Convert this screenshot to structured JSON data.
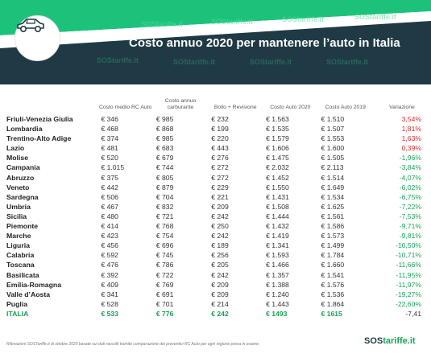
{
  "header": {
    "title": "Costo annuo 2020 per mantenere l’auto in Italia",
    "watermark_text": "SOStariffe.it",
    "colors": {
      "band": "#1f3a44",
      "accent": "#1dc27a"
    }
  },
  "table": {
    "columns": [
      "",
      "Costo medio RC Auto",
      "Costo annuo carburante",
      "Bollo + Revisione",
      "Costo Auto 2020",
      "Costo Auto 2019",
      "Variazione"
    ],
    "rows": [
      {
        "region": "Friuli-Venezia Giulia",
        "rc": "€ 346",
        "fuel": "€ 985",
        "bollo": "€ 232",
        "c2020": "€ 1.563",
        "c2019": "€ 1.510",
        "var": "3,54%",
        "trend": "pos"
      },
      {
        "region": "Lombardia",
        "rc": "€ 468",
        "fuel": "€ 868",
        "bollo": "€ 199",
        "c2020": "€ 1.535",
        "c2019": "€ 1.507",
        "var": "1,81%",
        "trend": "pos"
      },
      {
        "region": "Trentino-Alto Adige",
        "rc": "€ 374",
        "fuel": "€ 985",
        "bollo": "€ 220",
        "c2020": "€ 1.579",
        "c2019": "€ 1.553",
        "var": "1,63%",
        "trend": "pos"
      },
      {
        "region": "Lazio",
        "rc": "€ 481",
        "fuel": "€ 683",
        "bollo": "€ 443",
        "c2020": "€ 1.606",
        "c2019": "€ 1.600",
        "var": "0,39%",
        "trend": "pos"
      },
      {
        "region": "Molise",
        "rc": "€ 520",
        "fuel": "€ 679",
        "bollo": "€ 276",
        "c2020": "€ 1.475",
        "c2019": "€ 1.505",
        "var": "-1,96%",
        "trend": "neg"
      },
      {
        "region": "Campania",
        "rc": "€ 1.015",
        "fuel": "€ 744",
        "bollo": "€ 272",
        "c2020": "€ 2.032",
        "c2019": "€ 2.113",
        "var": "-3,84%",
        "trend": "neg"
      },
      {
        "region": "Abruzzo",
        "rc": "€ 375",
        "fuel": "€ 805",
        "bollo": "€ 272",
        "c2020": "€ 1.452",
        "c2019": "€ 1.514",
        "var": "-4,07%",
        "trend": "neg"
      },
      {
        "region": "Veneto",
        "rc": "€ 442",
        "fuel": "€ 879",
        "bollo": "€ 229",
        "c2020": "€ 1.550",
        "c2019": "€ 1.649",
        "var": "-6,02%",
        "trend": "neg"
      },
      {
        "region": "Sardegna",
        "rc": "€ 506",
        "fuel": "€ 704",
        "bollo": "€ 221",
        "c2020": "€ 1.431",
        "c2019": "€ 1.534",
        "var": "-6,75%",
        "trend": "neg"
      },
      {
        "region": "Umbria",
        "rc": "€ 467",
        "fuel": "€ 832",
        "bollo": "€ 209",
        "c2020": "€ 1.508",
        "c2019": "€ 1.625",
        "var": "-7,22%",
        "trend": "neg"
      },
      {
        "region": "Sicilia",
        "rc": "€ 480",
        "fuel": "€ 721",
        "bollo": "€ 242",
        "c2020": "€ 1.444",
        "c2019": "€ 1.561",
        "var": "-7,53%",
        "trend": "neg"
      },
      {
        "region": "Piemonte",
        "rc": "€ 414",
        "fuel": "€ 768",
        "bollo": "€ 250",
        "c2020": "€ 1.432",
        "c2019": "€ 1.586",
        "var": "-9,71%",
        "trend": "neg"
      },
      {
        "region": "Marche",
        "rc": "€ 423",
        "fuel": "€ 754",
        "bollo": "€ 242",
        "c2020": "€ 1.419",
        "c2019": "€ 1.573",
        "var": "-9,81%",
        "trend": "neg"
      },
      {
        "region": "Liguria",
        "rc": "€ 456",
        "fuel": "€ 696",
        "bollo": "€ 189",
        "c2020": "€ 1.341",
        "c2019": "€ 1.499",
        "var": "-10,50%",
        "trend": "neg"
      },
      {
        "region": "Calabria",
        "rc": "€ 592",
        "fuel": "€ 745",
        "bollo": "€ 256",
        "c2020": "€ 1.593",
        "c2019": "€ 1.784",
        "var": "-10,71%",
        "trend": "neg"
      },
      {
        "region": "Toscana",
        "rc": "€ 476",
        "fuel": "€ 786",
        "bollo": "€ 205",
        "c2020": "€ 1.466",
        "c2019": "€ 1.660",
        "var": "-11,66%",
        "trend": "neg"
      },
      {
        "region": "Basilicata",
        "rc": "€ 392",
        "fuel": "€ 722",
        "bollo": "€ 242",
        "c2020": "€ 1.357",
        "c2019": "€ 1.541",
        "var": "-11,95%",
        "trend": "neg"
      },
      {
        "region": "Emilia-Romagna",
        "rc": "€ 409",
        "fuel": "€ 769",
        "bollo": "€ 209",
        "c2020": "€ 1.388",
        "c2019": "€ 1.576",
        "var": "-11,97%",
        "trend": "neg"
      },
      {
        "region": "Valle d’Aosta",
        "rc": "€ 341",
        "fuel": "€ 691",
        "bollo": "€ 209",
        "c2020": "€ 1.240",
        "c2019": "€ 1.536",
        "var": "-19,27%",
        "trend": "neg"
      },
      {
        "region": "Puglia",
        "rc": "€ 528",
        "fuel": "€ 701",
        "bollo": "€ 214",
        "c2020": "€ 1.443",
        "c2019": "€ 1.864",
        "var": "-22,60%",
        "trend": "neg"
      }
    ],
    "total": {
      "region": "ITALIA",
      "rc": "€ 533",
      "fuel": "€ 776",
      "bollo": "€ 242",
      "c2020": "€ 1493",
      "c2019": "€ 1615",
      "var": "-7,41"
    }
  },
  "footnote": "Rilevazioni SOSTariffe.it di ottobre 2020 basate sui dati raccolti tramite comparazione dei preventivi RC Auto per ogni regione presa in esame.",
  "logo": {
    "part1": "SOS",
    "part2": "tariffe.it"
  }
}
